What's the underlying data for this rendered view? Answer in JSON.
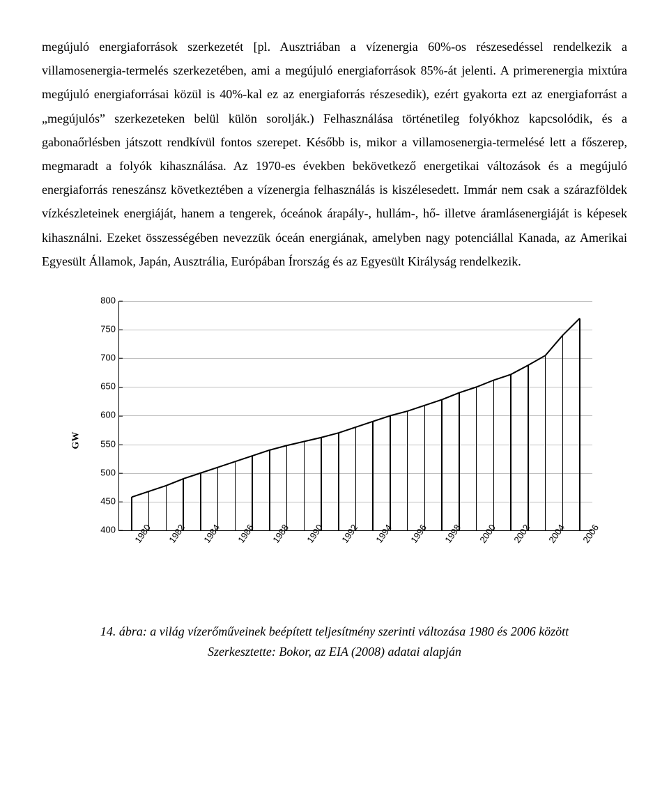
{
  "paragraph": "megújuló energiaforrások szerkezetét [pl. Ausztriában a vízenergia 60%-os részesedéssel rendelkezik a villamosenergia-termelés szerkezetében, ami a megújuló energiaforrások 85%-át jelenti. A primerenergia mixtúra megújuló energiaforrásai közül is 40%-kal ez az energiaforrás részesedik), ezért gyakorta ezt az energiaforrást a „megújulós” szerkezeteken belül külön sorolják.) Felhasználása történetileg folyókhoz kapcsolódik, és a gabonaőrlésben játszott rendkívül fontos szerepet. Később is, mikor a villamosenergia-termelésé lett a főszerep, megmaradt a folyók kihasználása. Az 1970-es években bekövetkező energetikai változások és a megújuló energiaforrás reneszánsz következtében a vízenergia felhasználás is kiszélesedett. Immár nem csak a szárazföldek vízkészleteinek energiáját, hanem a tengerek, óceánok árapály-, hullám-, hő- illetve áramlásenergiáját is képesek kihasználni. Ezeket összességében nevezzük óceán energiának, amelyben nagy potenciállal Kanada, az Amerikai Egyesült Államok, Japán, Ausztrália, Európában Írország és az Egyesült Királyság rendelkezik.",
  "chart": {
    "type": "line-with-bars",
    "y_label": "GW",
    "ylim": [
      400,
      800
    ],
    "ytick_step": 50,
    "yticks": [
      400,
      450,
      500,
      550,
      600,
      650,
      700,
      750,
      800
    ],
    "xticks": [
      "1980",
      "1982",
      "1984",
      "1986",
      "1988",
      "1990",
      "1992",
      "1994",
      "1996",
      "1998",
      "2000",
      "2002",
      "2004",
      "2006"
    ],
    "series": {
      "years": [
        1980,
        1981,
        1982,
        1983,
        1984,
        1985,
        1986,
        1987,
        1988,
        1989,
        1990,
        1991,
        1992,
        1993,
        1994,
        1995,
        1996,
        1997,
        1998,
        1999,
        2000,
        2001,
        2002,
        2003,
        2004,
        2005,
        2006
      ],
      "values": [
        458,
        468,
        478,
        490,
        500,
        510,
        520,
        530,
        540,
        548,
        555,
        562,
        570,
        580,
        590,
        600,
        608,
        618,
        628,
        640,
        650,
        662,
        672,
        688,
        705,
        740,
        770
      ]
    },
    "line_color": "#000000",
    "line_width": 2,
    "bar_color": "#000000",
    "bar_width": 1.5,
    "grid_color": "#bfbfbf",
    "background_color": "#ffffff",
    "tick_fontsize": 13,
    "tick_font": "Arial",
    "ylabel_fontweight": "bold"
  },
  "caption_line1": "14. ábra: a világ vízerőműveinek beépített teljesítmény szerinti változása 1980 és 2006 között",
  "caption_line2": "Szerkesztette: Bokor, az EIA (2008) adatai alapján"
}
